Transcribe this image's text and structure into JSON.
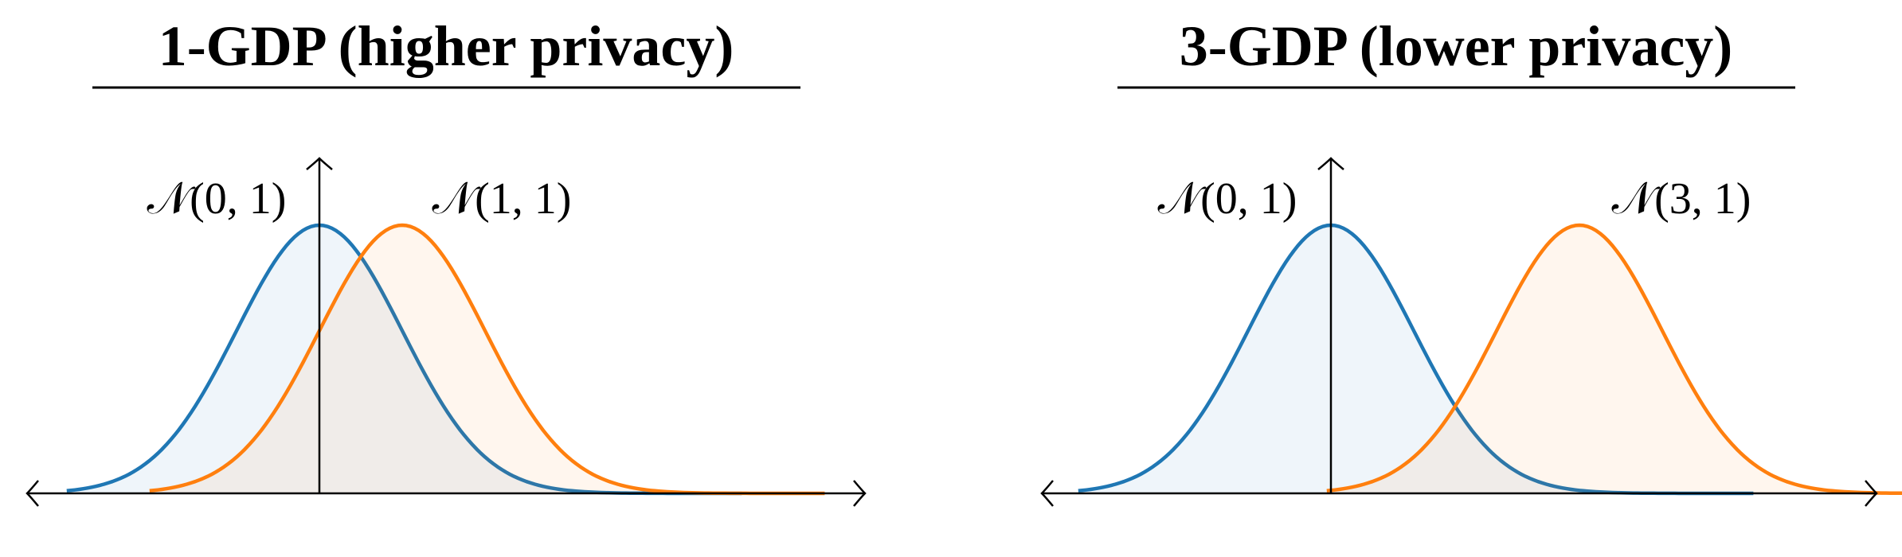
{
  "panels": [
    {
      "title": "1-GDP (higher privacy)",
      "curves": [
        {
          "label": "𝒩(0, 1)",
          "mean": 0,
          "sd": 1,
          "color": "#1f77b4"
        },
        {
          "label": "𝒩(1, 1)",
          "mean": 1,
          "sd": 1,
          "color": "#ff7f0e"
        }
      ]
    },
    {
      "title": "3-GDP (lower privacy)",
      "curves": [
        {
          "label": "𝒩(0, 1)",
          "mean": 0,
          "sd": 1,
          "color": "#1f77b4"
        },
        {
          "label": "𝒩(3, 1)",
          "mean": 3,
          "sd": 1,
          "color": "#ff7f0e"
        }
      ]
    }
  ]
}
